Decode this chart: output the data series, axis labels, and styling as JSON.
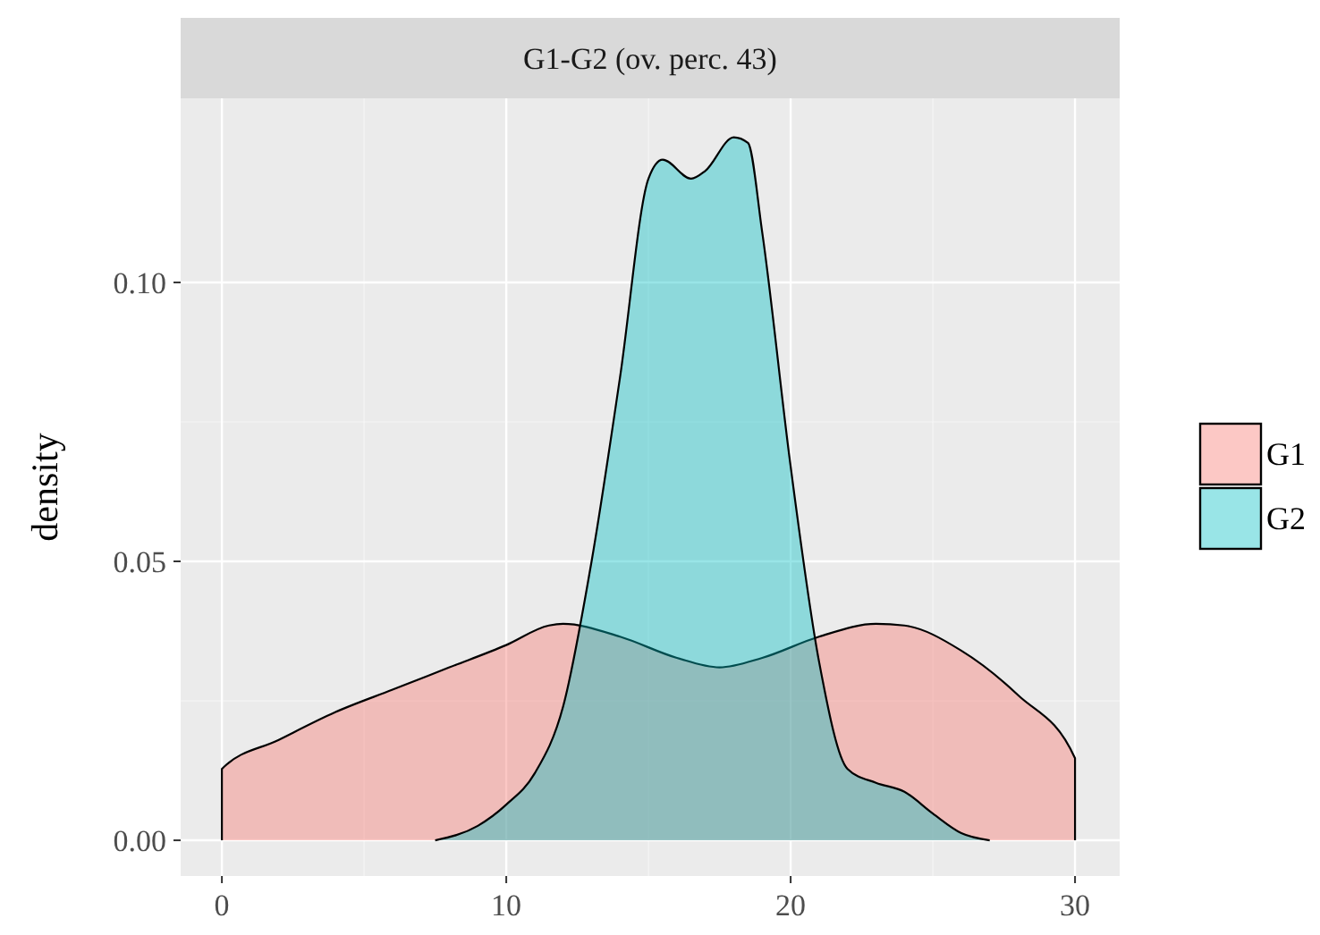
{
  "chart_data": {
    "type": "area",
    "title": "G1-G2 (ov. perc. 43)",
    "ylabel": "density",
    "xlim": [
      -1.45,
      31.57
    ],
    "ylim": [
      -0.0064,
      0.133
    ],
    "xticks": [
      0,
      10,
      20,
      30
    ],
    "yticks": [
      {
        "value": 0,
        "label": "0.00"
      },
      {
        "value": 0.05,
        "label": "0.05"
      },
      {
        "value": 0.1,
        "label": "0.10"
      }
    ],
    "grid": true,
    "legend": "right",
    "series": [
      {
        "name": "G1",
        "color": "#f8766d",
        "x": [
          0,
          0,
          2,
          4,
          6,
          8,
          10,
          11.5,
          12,
          14,
          16,
          17.5,
          19,
          21,
          23,
          24,
          26,
          28,
          30,
          30
        ],
        "values": [
          0,
          0.0128,
          0.018,
          0.023,
          0.027,
          0.031,
          0.035,
          0.0385,
          0.0388,
          0.0365,
          0.0327,
          0.031,
          0.0327,
          0.0365,
          0.0388,
          0.0385,
          0.034,
          0.026,
          0.0147,
          0
        ]
      },
      {
        "name": "G2",
        "color": "#00bfc4",
        "x": [
          7.5,
          9,
          10,
          11,
          12,
          13,
          14,
          15,
          15.5,
          16.5,
          17,
          18,
          18.5,
          19,
          20,
          21,
          22,
          23,
          24,
          25,
          26,
          27
        ],
        "values": [
          0,
          0.0026,
          0.0064,
          0.012,
          0.024,
          0.05,
          0.083,
          0.1186,
          0.122,
          0.1186,
          0.12,
          0.126,
          0.125,
          0.109,
          0.067,
          0.032,
          0.0128,
          0.0103,
          0.0087,
          0.0048,
          0.0013,
          0
        ]
      }
    ]
  }
}
